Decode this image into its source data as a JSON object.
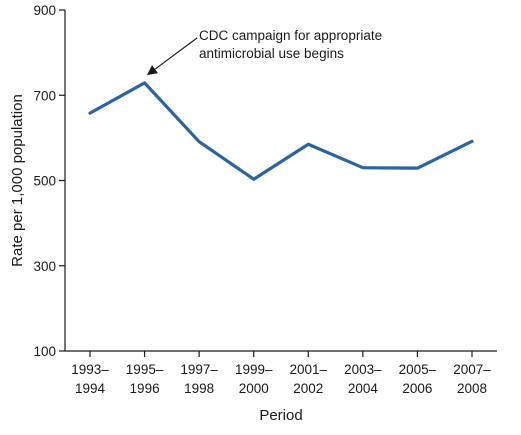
{
  "chart_data": {
    "type": "line",
    "title": "",
    "xlabel": "Period",
    "ylabel": "Rate per 1,000 population",
    "ylim": [
      100,
      900
    ],
    "yticks": [
      100,
      300,
      500,
      700,
      900
    ],
    "categories": [
      [
        "1993–",
        "1994"
      ],
      [
        "1995–",
        "1996"
      ],
      [
        "1997–",
        "1998"
      ],
      [
        "1999–",
        "2000"
      ],
      [
        "2001–",
        "2002"
      ],
      [
        "2003–",
        "2004"
      ],
      [
        "2005–",
        "2006"
      ],
      [
        "2007–",
        "2008"
      ]
    ],
    "series": [
      {
        "values": [
          658,
          729,
          591,
          503,
          585,
          530,
          529,
          592
        ]
      }
    ],
    "line_color": "#2b64a4",
    "grid": false,
    "annotation": {
      "lines": [
        "CDC campaign for appropriate",
        "antimicrobial use begins"
      ],
      "point_index": 1
    }
  }
}
